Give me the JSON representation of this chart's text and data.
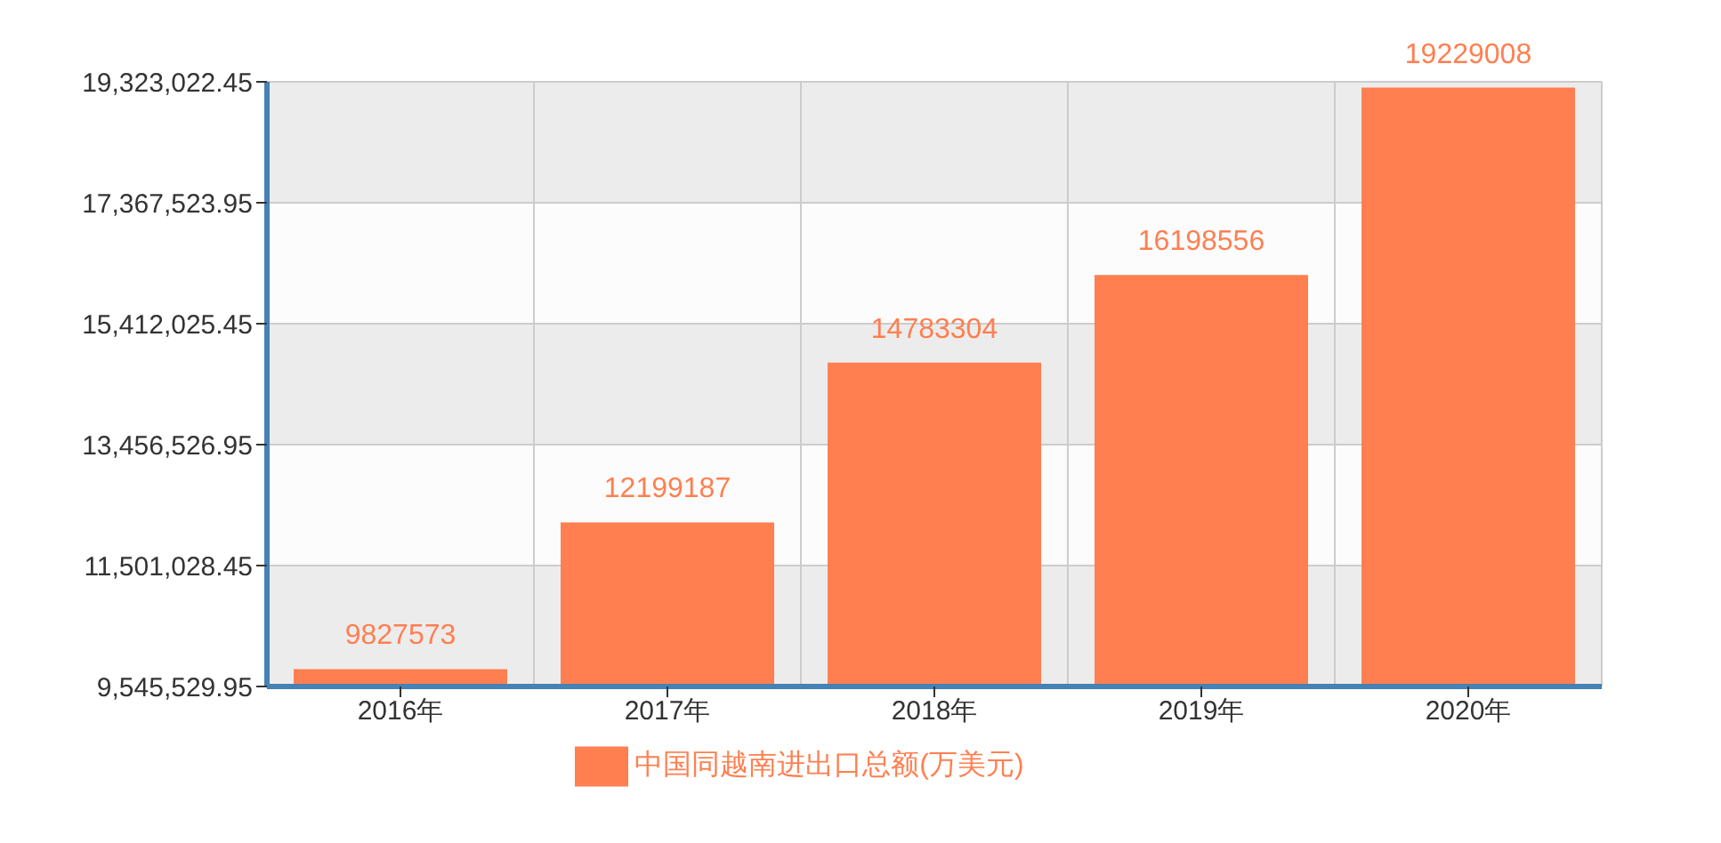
{
  "chart_data": {
    "type": "bar",
    "categories": [
      "2016年",
      "2017年",
      "2018年",
      "2019年",
      "2020年"
    ],
    "series": [
      {
        "name": "中国同越南进出口总额(万美元)",
        "color": "#ff7f50",
        "values": [
          9827573,
          12199187,
          14783304,
          16198556,
          19229008
        ]
      }
    ],
    "ylim": [
      9545529.95,
      19323022.45
    ],
    "yticks": [
      {
        "value": 9545529.95,
        "label": "9,545,529.95"
      },
      {
        "value": 11501028.45,
        "label": "11,501,028.45"
      },
      {
        "value": 13456526.95,
        "label": "13,456,526.95"
      },
      {
        "value": 15412025.45,
        "label": "15,412,025.45"
      },
      {
        "value": 17367523.95,
        "label": "17,367,523.95"
      },
      {
        "value": 19323022.45,
        "label": "19,323,022.45"
      }
    ],
    "grid": true,
    "legend": "bottom",
    "data_labels": true
  }
}
